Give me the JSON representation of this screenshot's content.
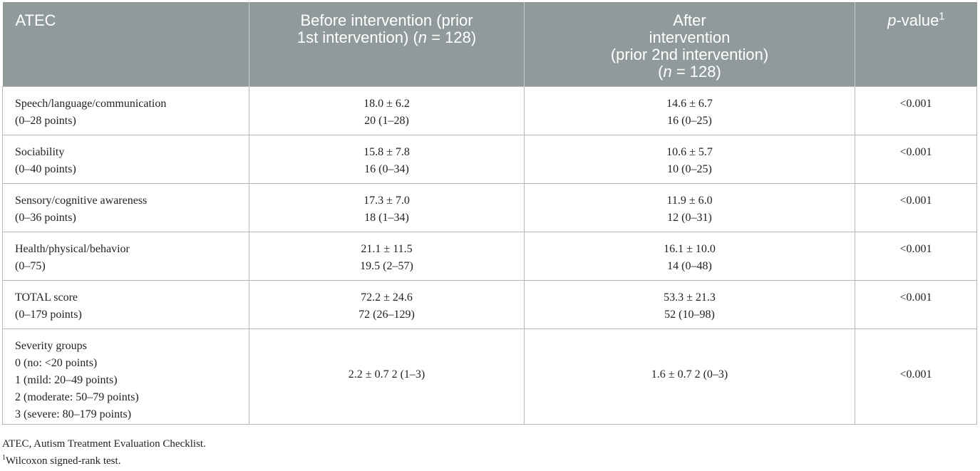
{
  "header": {
    "col1": "ATEC",
    "col2_line1": "Before intervention (prior",
    "col2_line2_a": "1st intervention) (",
    "col2_n": "n",
    "col2_line2_b": " = 128)",
    "col3_line1": "After",
    "col3_line2": "intervention",
    "col3_line3": "(prior 2nd intervention)",
    "col3_line4_a": "(",
    "col3_n": "n",
    "col3_line4_b": " = 128)",
    "col4_p": "p",
    "col4_rest": "-value",
    "col4_sup": "1"
  },
  "rows": [
    {
      "label": [
        "Speech/language/communication",
        "(0–28 points)"
      ],
      "before": [
        "18.0 ± 6.2",
        "20 (1–28)"
      ],
      "after": [
        "14.6 ± 6.7",
        "16 (0–25)"
      ],
      "p": "<0.001"
    },
    {
      "label": [
        "Sociability",
        "(0–40 points)"
      ],
      "before": [
        "15.8 ± 7.8",
        "16 (0–34)"
      ],
      "after": [
        "10.6 ± 5.7",
        "10 (0–25)"
      ],
      "p": "<0.001"
    },
    {
      "label": [
        "Sensory/cognitive awareness",
        "(0–36 points)"
      ],
      "before": [
        "17.3 ± 7.0",
        "18 (1–34)"
      ],
      "after": [
        "11.9 ± 6.0",
        "12 (0–31)"
      ],
      "p": "<0.001"
    },
    {
      "label": [
        "Health/physical/behavior",
        "(0–75)"
      ],
      "before": [
        "21.1 ± 11.5",
        "19.5 (2–57)"
      ],
      "after": [
        "16.1 ± 10.0",
        "14 (0–48)"
      ],
      "p": "<0.001"
    },
    {
      "label": [
        "TOTAL score",
        "(0–179 points)"
      ],
      "before": [
        "72.2 ± 24.6",
        "72 (26–129)"
      ],
      "after": [
        "53.3 ± 21.3",
        "52 (10–98)"
      ],
      "p": "<0.001"
    }
  ],
  "severity": {
    "label": [
      "Severity groups",
      "0 (no: <20 points)",
      "1 (mild: 20–49 points)",
      "2 (moderate: 50–79 points)",
      "3 (severe: 80–179 points)"
    ],
    "before": "2.2 ± 0.7 2 (1–3)",
    "after": "1.6 ± 0.7 2 (0–3)",
    "p": "<0.001"
  },
  "notes": {
    "abbr": "ATEC, Autism Treatment Evaluation Checklist.",
    "sup": "1",
    "test": "Wilcoxon signed-rank test."
  }
}
